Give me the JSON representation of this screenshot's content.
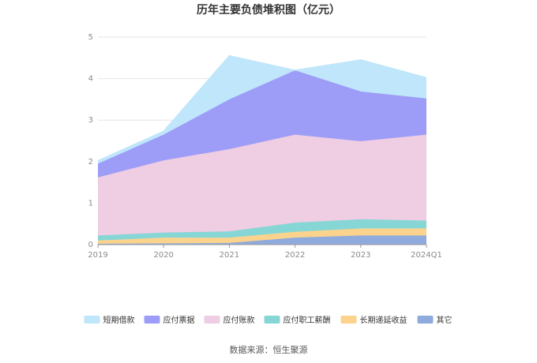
{
  "chart_data": {
    "type": "area",
    "stacked": true,
    "title": "历年主要负债堆积图（亿元）",
    "categories": [
      "2019",
      "2020",
      "2021",
      "2022",
      "2023",
      "2024Q1"
    ],
    "ylim": [
      0,
      5
    ],
    "yticks": [
      "0",
      "1",
      "2",
      "3",
      "4",
      "5"
    ],
    "grid": true,
    "legend_position": "bottom",
    "series": [
      {
        "name": "其它",
        "color": "#8faadc",
        "values": [
          0.02,
          0.03,
          0.04,
          0.17,
          0.22,
          0.22
        ]
      },
      {
        "name": "长期递延收益",
        "color": "#fbd38d",
        "values": [
          0.08,
          0.14,
          0.13,
          0.14,
          0.17,
          0.17
        ]
      },
      {
        "name": "应付职工薪酬",
        "color": "#86d6d6",
        "values": [
          0.12,
          0.12,
          0.15,
          0.22,
          0.22,
          0.19
        ]
      },
      {
        "name": "应付账款",
        "color": "#efcde3",
        "values": [
          1.4,
          1.74,
          1.98,
          2.12,
          1.88,
          2.07
        ]
      },
      {
        "name": "应付票据",
        "color": "#9d9df7",
        "values": [
          0.33,
          0.62,
          1.2,
          1.55,
          1.2,
          0.87
        ]
      },
      {
        "name": "短期借款",
        "color": "#bfe6fb",
        "values": [
          0.07,
          0.08,
          1.05,
          0.0,
          0.76,
          0.5
        ]
      }
    ],
    "legend_order": [
      "短期借款",
      "应付票据",
      "应付账款",
      "应付职工薪酬",
      "长期递延收益",
      "其它"
    ]
  },
  "source_text": "数据来源：恒生聚源"
}
